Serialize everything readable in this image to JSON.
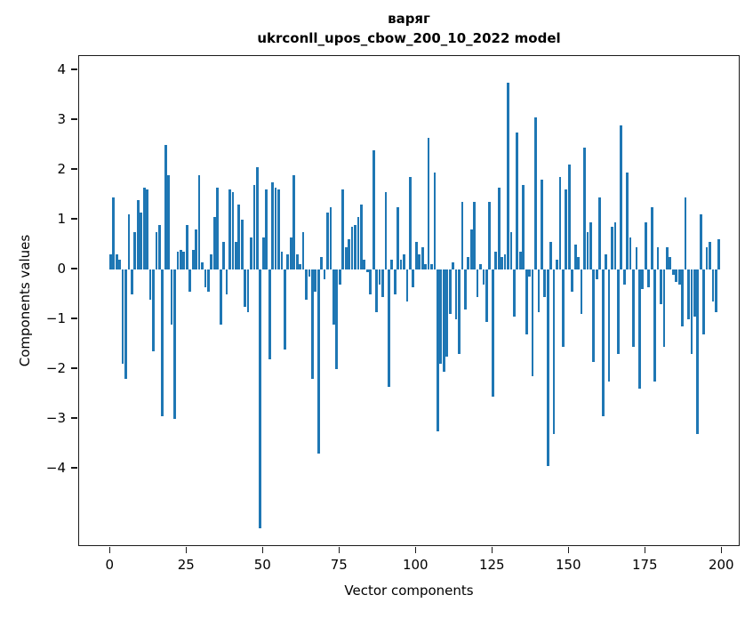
{
  "title": {
    "word": "варяг",
    "model_line": "ukrconll_upos_cbow_200_10_2022 model"
  },
  "axes": {
    "xlabel": "Vector components",
    "ylabel": "Components values",
    "x_ticks": [
      0,
      25,
      50,
      75,
      100,
      125,
      150,
      175,
      200
    ],
    "y_ticks": [
      4,
      3,
      2,
      1,
      0,
      -1,
      -2,
      -3,
      -4
    ]
  },
  "chart_data": {
    "type": "bar",
    "title": "варяг\nukrconll_upos_cbow_200_10_2022 model",
    "xlabel": "Vector components",
    "ylabel": "Components values",
    "bar_color": "#1f77b4",
    "x_start": 0,
    "n_components": 200,
    "xlim": [
      -10,
      206
    ],
    "ylim": [
      -5.6,
      4.3
    ],
    "x_tick_values": [
      0,
      25,
      50,
      75,
      100,
      125,
      150,
      175,
      200
    ],
    "y_tick_values": [
      4,
      3,
      2,
      1,
      0,
      -1,
      -2,
      -3,
      -4
    ],
    "grid": false,
    "legend": false,
    "values": [
      0.3,
      1.45,
      0.3,
      0.2,
      -1.9,
      -2.2,
      1.1,
      -0.5,
      0.75,
      1.4,
      1.15,
      1.65,
      1.6,
      -0.6,
      -1.65,
      0.75,
      0.9,
      -2.95,
      2.5,
      1.9,
      -1.1,
      -3.0,
      0.35,
      0.4,
      0.35,
      0.9,
      -0.45,
      0.4,
      0.8,
      1.9,
      0.15,
      -0.35,
      -0.45,
      0.3,
      1.05,
      1.65,
      -1.1,
      0.55,
      -0.5,
      1.6,
      1.55,
      0.55,
      1.3,
      1.0,
      -0.75,
      -0.85,
      0.65,
      1.7,
      2.05,
      -5.2,
      0.65,
      1.6,
      -1.8,
      1.75,
      1.65,
      1.6,
      0.35,
      -1.6,
      0.3,
      0.65,
      1.9,
      0.3,
      0.1,
      0.75,
      -0.6,
      -0.15,
      -2.2,
      -0.45,
      -3.7,
      0.25,
      -0.2,
      1.15,
      1.25,
      -1.1,
      -2.0,
      -0.3,
      1.6,
      0.45,
      0.6,
      0.85,
      0.9,
      1.05,
      1.3,
      0.2,
      -0.05,
      -0.5,
      2.4,
      -0.85,
      -0.3,
      -0.55,
      1.55,
      -2.35,
      0.2,
      -0.5,
      1.25,
      0.2,
      0.3,
      -0.65,
      1.85,
      -0.35,
      0.55,
      0.3,
      0.45,
      0.1,
      2.65,
      0.1,
      1.95,
      -3.25,
      -1.9,
      -2.05,
      -1.75,
      -0.9,
      0.15,
      -1.0,
      -1.7,
      1.35,
      -0.8,
      0.25,
      0.8,
      1.35,
      -0.55,
      0.1,
      -0.3,
      -1.05,
      1.35,
      -2.55,
      0.35,
      1.65,
      0.25,
      0.3,
      3.75,
      0.75,
      -0.95,
      2.75,
      0.35,
      1.7,
      -1.3,
      -0.15,
      -2.15,
      3.05,
      -0.85,
      1.8,
      -0.55,
      -3.95,
      0.55,
      -3.3,
      0.2,
      1.85,
      -1.55,
      1.6,
      2.1,
      -0.45,
      0.5,
      0.25,
      -0.9,
      2.45,
      0.75,
      0.95,
      -1.85,
      -0.2,
      1.45,
      -2.95,
      0.3,
      -2.25,
      0.85,
      0.95,
      -1.7,
      2.9,
      -0.3,
      1.95,
      0.65,
      -1.55,
      0.45,
      -2.4,
      -0.4,
      0.95,
      -0.35,
      1.25,
      -2.25,
      0.45,
      -0.7,
      -1.55,
      0.45,
      0.25,
      -0.1,
      -0.25,
      -0.3,
      -1.15,
      1.45,
      -1.0,
      -1.7,
      -0.95,
      -3.3,
      1.1,
      -1.3,
      0.45,
      0.55,
      -0.65,
      -0.85,
      0.6
    ]
  }
}
